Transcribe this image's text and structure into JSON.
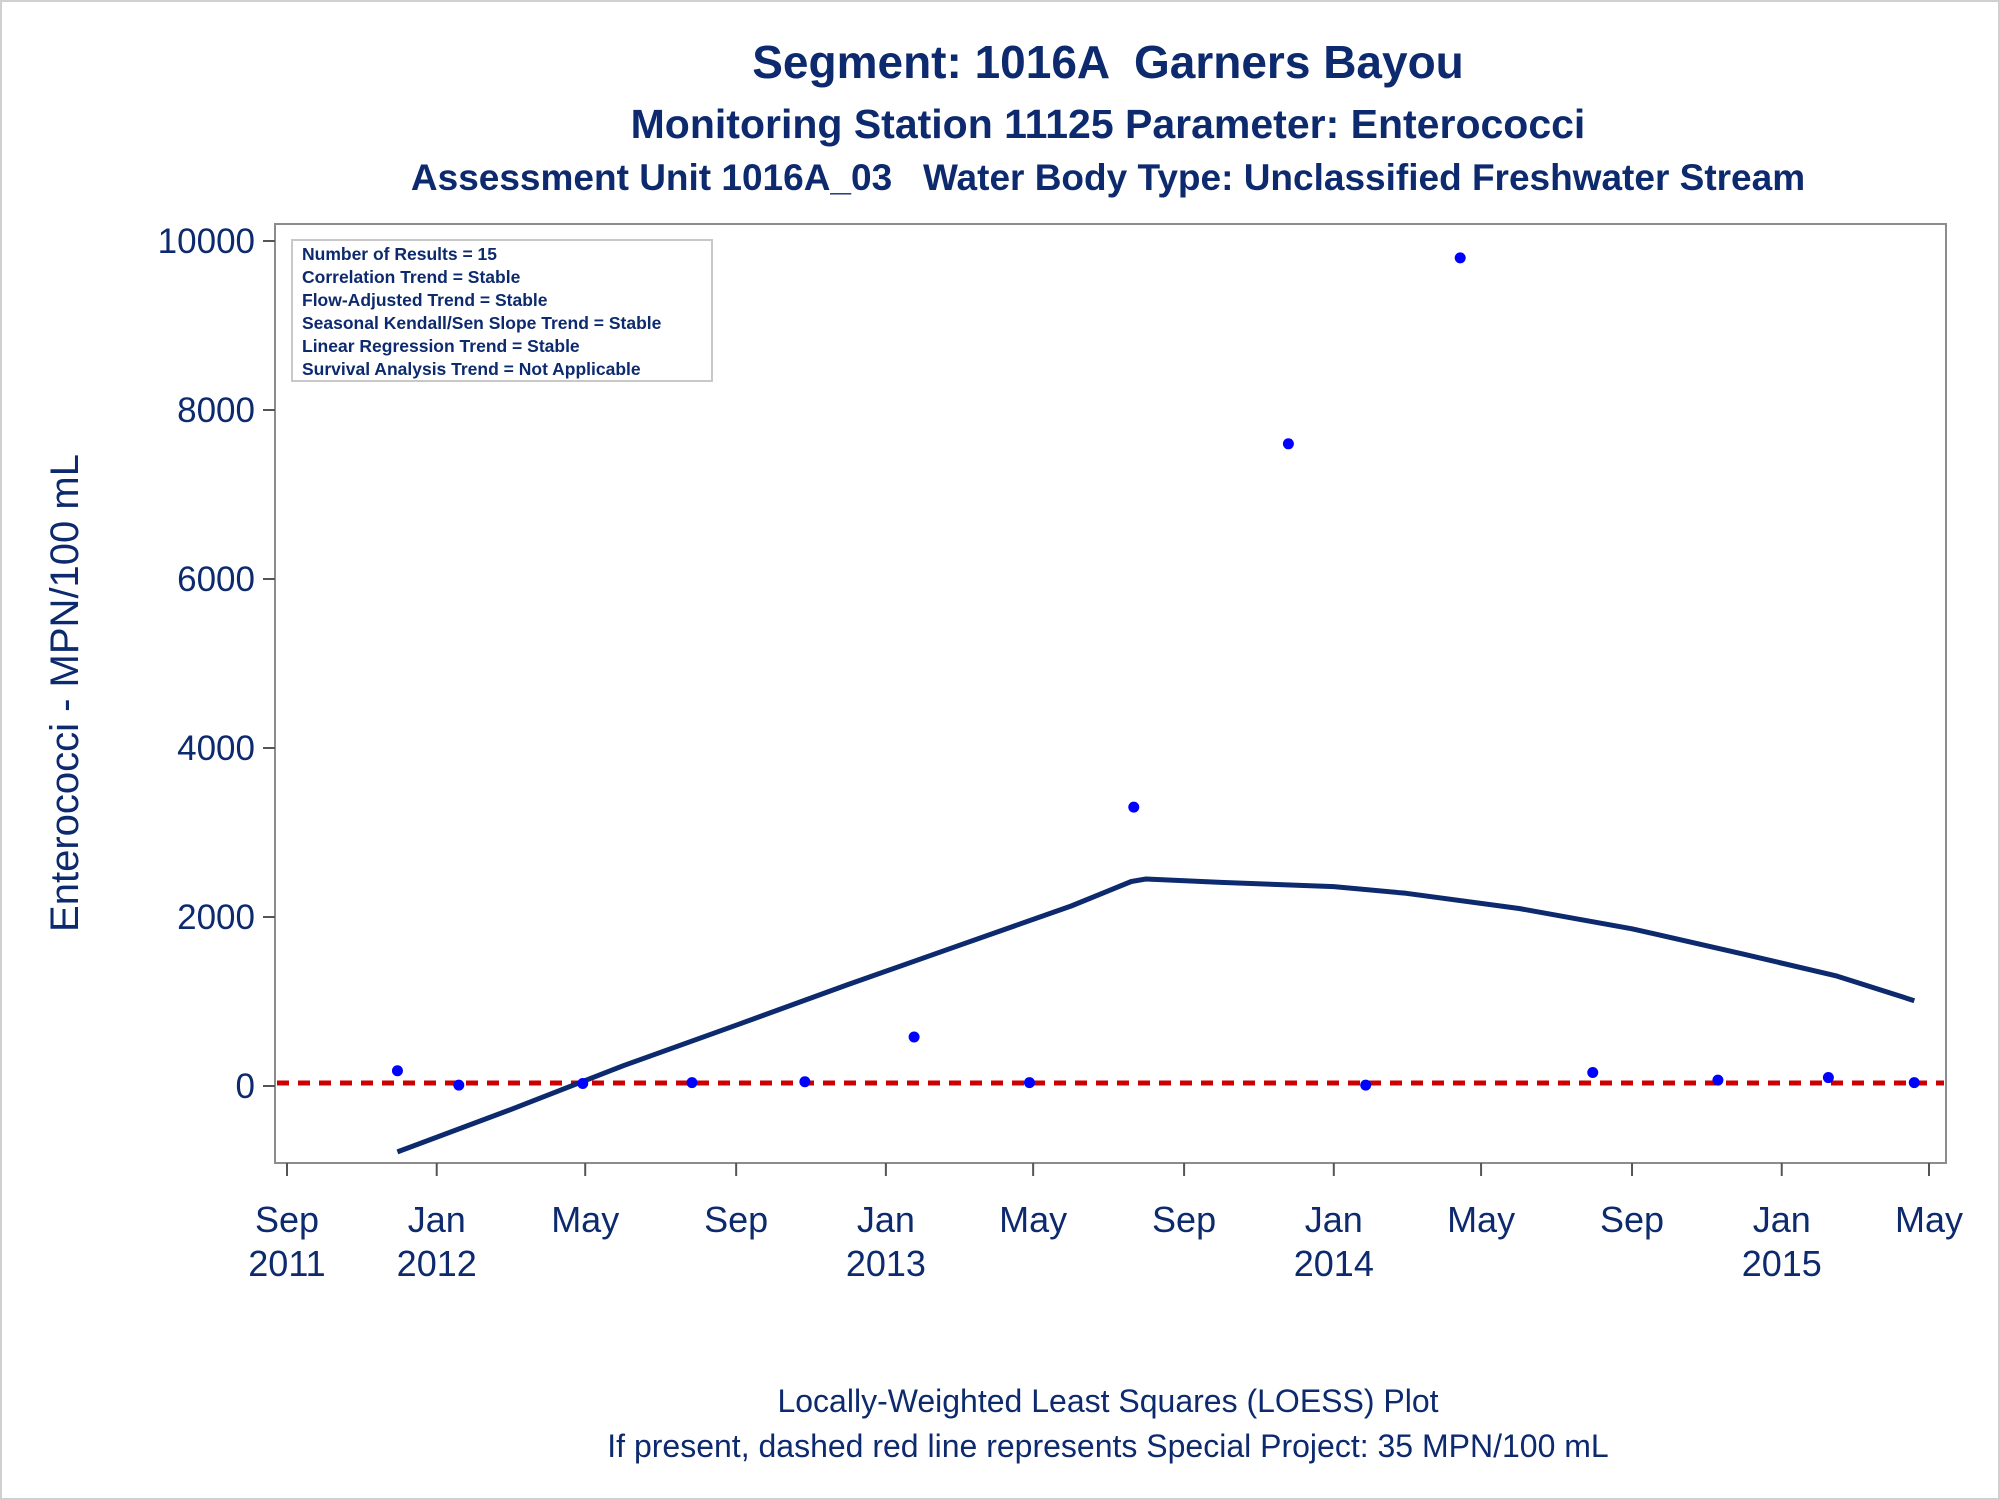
{
  "chart_data": {
    "type": "scatter",
    "title": "Segment: 1016A  Garners Bayou",
    "subtitle": "Monitoring Station 11125 Parameter: Enterococci",
    "subtitle2": "Assessment Unit 1016A_03   Water Body Type: Unclassified Freshwater Stream",
    "ylabel": "Enterococci - MPN/100 mL",
    "ylim": [
      -900,
      10000
    ],
    "xlim": [
      "2011-09-01",
      "2015-05-01"
    ],
    "yticks": [
      0,
      2000,
      4000,
      6000,
      8000,
      10000
    ],
    "xticks": [
      {
        "date": "2011-09-01",
        "line1": "Sep",
        "line2": "2011"
      },
      {
        "date": "2012-01-01",
        "line1": "Jan",
        "line2": "2012"
      },
      {
        "date": "2012-05-01",
        "line1": "May",
        "line2": ""
      },
      {
        "date": "2012-09-01",
        "line1": "Sep",
        "line2": ""
      },
      {
        "date": "2013-01-01",
        "line1": "Jan",
        "line2": "2013"
      },
      {
        "date": "2013-05-01",
        "line1": "May",
        "line2": ""
      },
      {
        "date": "2013-09-01",
        "line1": "Sep",
        "line2": ""
      },
      {
        "date": "2014-01-01",
        "line1": "Jan",
        "line2": "2014"
      },
      {
        "date": "2014-05-01",
        "line1": "May",
        "line2": ""
      },
      {
        "date": "2014-09-01",
        "line1": "Sep",
        "line2": ""
      },
      {
        "date": "2015-01-01",
        "line1": "Jan",
        "line2": "2015"
      },
      {
        "date": "2015-05-01",
        "line1": "May",
        "line2": ""
      }
    ],
    "points": [
      {
        "date": "2011-11-30",
        "value": 180
      },
      {
        "date": "2012-01-19",
        "value": 10
      },
      {
        "date": "2012-04-29",
        "value": 30
      },
      {
        "date": "2012-07-27",
        "value": 40
      },
      {
        "date": "2012-10-27",
        "value": 50
      },
      {
        "date": "2013-01-24",
        "value": 580
      },
      {
        "date": "2013-04-28",
        "value": 40
      },
      {
        "date": "2013-07-22",
        "value": 3300
      },
      {
        "date": "2013-11-25",
        "value": 7600
      },
      {
        "date": "2014-01-27",
        "value": 10
      },
      {
        "date": "2014-04-14",
        "value": 9800
      },
      {
        "date": "2014-07-31",
        "value": 160
      },
      {
        "date": "2014-11-10",
        "value": 70
      },
      {
        "date": "2015-02-08",
        "value": 100
      },
      {
        "date": "2015-04-19",
        "value": 40
      }
    ],
    "loess": [
      {
        "date": "2011-11-30",
        "value": -780
      },
      {
        "date": "2012-03-01",
        "value": -280
      },
      {
        "date": "2012-06-01",
        "value": 240
      },
      {
        "date": "2012-09-01",
        "value": 720
      },
      {
        "date": "2012-12-01",
        "value": 1200
      },
      {
        "date": "2013-03-01",
        "value": 1660
      },
      {
        "date": "2013-06-01",
        "value": 2130
      },
      {
        "date": "2013-07-20",
        "value": 2420
      },
      {
        "date": "2013-08-01",
        "value": 2450
      },
      {
        "date": "2013-10-01",
        "value": 2410
      },
      {
        "date": "2014-01-01",
        "value": 2360
      },
      {
        "date": "2014-03-01",
        "value": 2280
      },
      {
        "date": "2014-06-01",
        "value": 2100
      },
      {
        "date": "2014-09-01",
        "value": 1860
      },
      {
        "date": "2014-12-01",
        "value": 1560
      },
      {
        "date": "2015-02-15",
        "value": 1300
      },
      {
        "date": "2015-04-19",
        "value": 1010
      }
    ],
    "reference_line": {
      "value": 35,
      "style": "dashed",
      "color": "#cc0000"
    },
    "marker_color": "#0000ff",
    "line_color": "#0d2a6e",
    "legend": [
      "Number of Results = 15",
      "Correlation Trend = Stable",
      "Flow-Adjusted Trend = Stable",
      "Seasonal Kendall/Sen Slope Trend = Stable",
      "Linear Regression Trend = Stable",
      "Survival Analysis Trend = Not Applicable"
    ],
    "legend_position": "top-left",
    "footnotes": [
      "Locally-Weighted Least Squares (LOESS) Plot",
      "If present, dashed red line represents Special Project: 35 MPN/100 mL"
    ],
    "grid": false
  }
}
